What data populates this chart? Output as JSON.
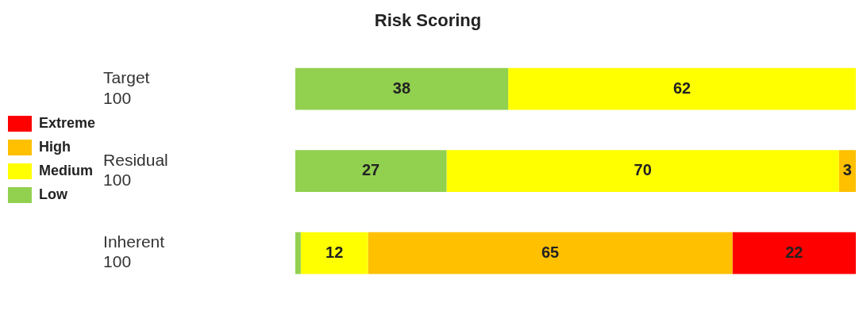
{
  "chart_data": {
    "type": "bar",
    "title": "Risk Scoring",
    "orientation": "horizontal",
    "stacked": true,
    "categories": [
      "Target\n100",
      "Residual\n100",
      "Inherent\n100"
    ],
    "xlim": [
      0,
      100
    ],
    "tick_labels": "y",
    "grid": false,
    "legend": "left",
    "series": [
      {
        "name": "Low",
        "color": "#92d050",
        "values": [
          38,
          27,
          1
        ],
        "value_labels": [
          "38",
          "27",
          null
        ]
      },
      {
        "name": "Medium",
        "color": "#ffff00",
        "values": [
          62,
          70,
          12
        ],
        "value_labels": [
          "62",
          "70",
          "12"
        ]
      },
      {
        "name": "High",
        "color": "#ffc000",
        "values": [
          null,
          3,
          65
        ],
        "value_labels": [
          null,
          "3",
          "65"
        ]
      },
      {
        "name": "Extreme",
        "color": "#ff0000",
        "values": [
          null,
          null,
          22
        ],
        "value_labels": [
          null,
          null,
          "22"
        ]
      }
    ]
  }
}
